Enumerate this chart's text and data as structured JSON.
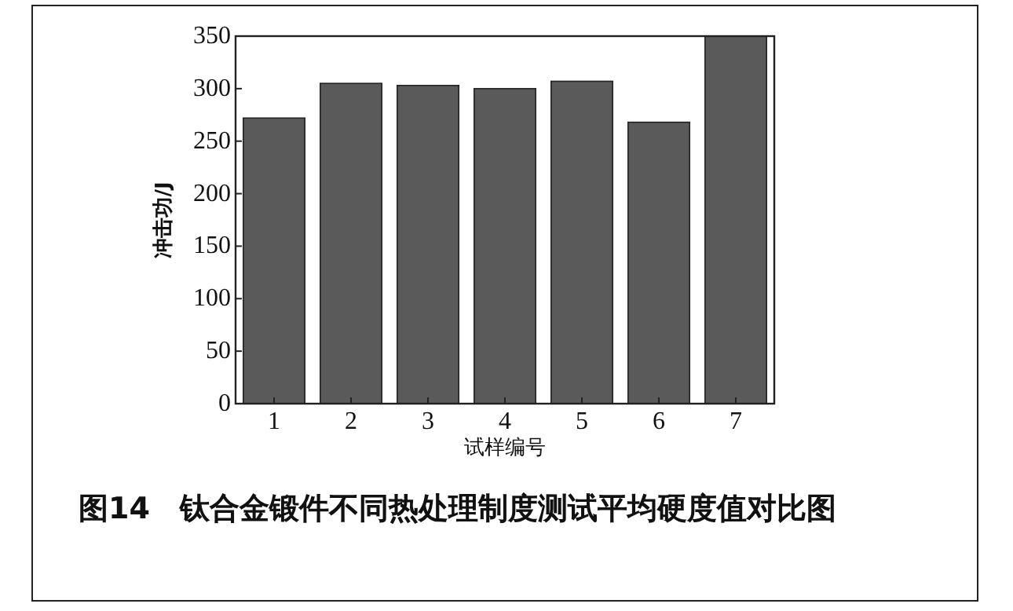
{
  "chart_data": {
    "type": "bar",
    "title": "图14　钛合金锻件不同热处理制度测试平均硬度值对比图",
    "xlabel": "试样编号",
    "ylabel": "冲击功/J",
    "categories": [
      "1",
      "2",
      "3",
      "4",
      "5",
      "6",
      "7"
    ],
    "values": [
      272,
      305,
      303,
      300,
      307,
      268,
      350
    ],
    "color": "#5a5a5a",
    "ylim": [
      0,
      350
    ],
    "yticks": [
      0,
      50,
      100,
      150,
      200,
      250,
      300,
      350
    ]
  }
}
